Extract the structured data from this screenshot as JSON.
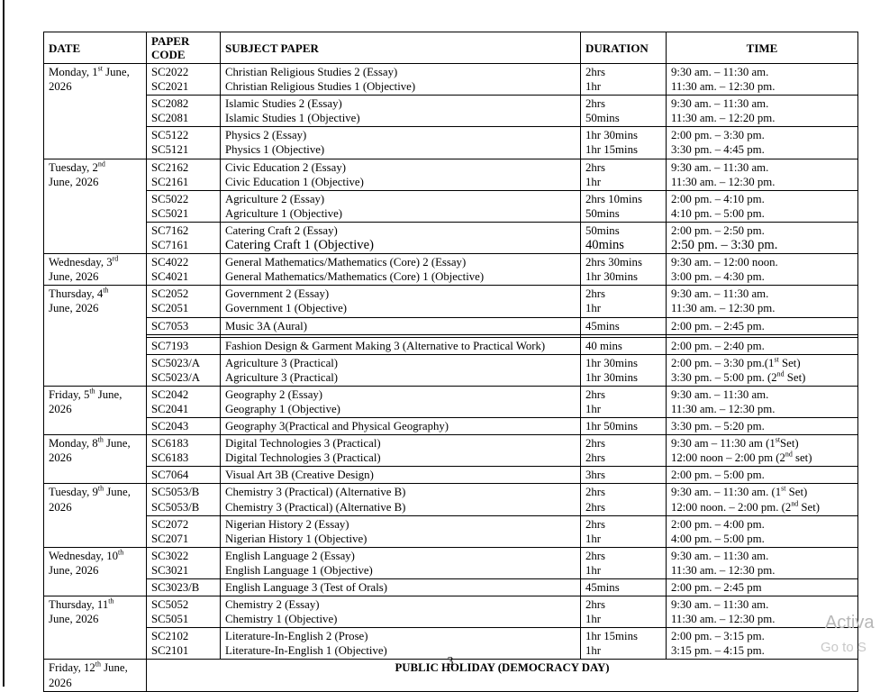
{
  "table": {
    "headers": [
      "DATE",
      "PAPER CODE",
      "SUBJECT PAPER",
      "DURATION",
      "TIME"
    ],
    "groups": [
      {
        "date": "Monday, 1^{st} June,\n2026",
        "rows": [
          {
            "codes": "SC2022\nSC2021",
            "subjects": "Christian Religious Studies 2 (Essay)\nChristian Religious Studies 1 (Objective)",
            "durations": "2hrs\n1hr",
            "times": "9:30 am. – 11:30 am.\n11:30 am. – 12:30 pm."
          },
          {
            "codes": "SC2082\nSC2081",
            "subjects": "Islamic Studies 2 (Essay)\nIslamic Studies 1 (Objective)",
            "durations": "2hrs\n50mins",
            "times": "9:30 am. – 11:30 am.\n11:30 am. – 12:20 pm."
          },
          {
            "codes": "SC5122\nSC5121",
            "subjects": "Physics 2 (Essay)\nPhysics 1 (Objective)",
            "durations": "1hr 30mins\n1hr 15mins",
            "times": "2:00 pm. – 3:30 pm.\n3:30 pm. – 4:45 pm."
          }
        ]
      },
      {
        "date": "Tuesday, 2^{nd}\nJune, 2026",
        "rows": [
          {
            "codes": "SC2162\nSC2161",
            "subjects": "Civic Education 2 (Essay)\nCivic Education 1 (Objective)",
            "durations": "2hrs\n1hr",
            "times": "9:30 am. – 11:30 am.\n11:30 am. – 12:30 pm."
          },
          {
            "codes": "SC5022\nSC5021",
            "subjects": "Agriculture 2 (Essay)\nAgriculture 1 (Objective)",
            "durations": "2hrs 10mins\n50mins",
            "times": "2:00 pm. – 4:10 pm.\n4:10 pm. – 5:00 pm."
          },
          {
            "codes": "SC7162\nSC7161",
            "subjects": "Catering Craft 2 (Essay)\nCatering Craft 1 (Objective)",
            "durations": "50mins\n40mins",
            "times": "2:00 pm. – 2:50 pm.\n2:50 pm. – 3:30 pm.",
            "lg": {
              "subjects": [
                1
              ],
              "durations": [
                1
              ],
              "times": [
                1
              ]
            }
          }
        ]
      },
      {
        "date": "Wednesday, 3^{rd}\nJune, 2026",
        "rows": [
          {
            "codes": "SC4022\nSC4021",
            "subjects": "General Mathematics/Mathematics (Core) 2 (Essay)\nGeneral Mathematics/Mathematics (Core) 1 (Objective)",
            "durations": "2hrs 30mins\n1hr 30mins",
            "times": "9:30 am. – 12:00 noon.\n3:00 pm. – 4:30 pm."
          }
        ]
      },
      {
        "date": "Thursday, 4^{th}\nJune, 2026",
        "rows": [
          {
            "codes": "SC2052\nSC2051",
            "subjects": "Government 2 (Essay)\nGovernment 1 (Objective)",
            "durations": "2hrs\n1hr",
            "times": "9:30 am. – 11:30 am.\n11:30 am. – 12:30 pm."
          },
          {
            "codes": "SC7053",
            "subjects": "Music 3A (Aural)",
            "durations": "45mins",
            "times": "2:00 pm. – 2:45 pm."
          },
          {
            "gap_before": true,
            "codes": "SC7193",
            "subjects": "Fashion Design & Garment Making 3 (Alternative to Practical Work)",
            "durations": "40 mins",
            "times": "2:00 pm. – 2:40 pm."
          },
          {
            "codes": "SC5023/A\nSC5023/A",
            "subjects": "Agriculture 3 (Practical)\nAgriculture 3 (Practical)",
            "durations": "1hr 30mins\n1hr 30mins",
            "times": "2:00 pm. – 3:30 pm.(1^{st} Set)\n3:30 pm. – 5:00 pm. (2^{nd} Set)"
          }
        ]
      },
      {
        "date": "Friday, 5^{th} June,\n2026",
        "rows": [
          {
            "codes": "SC2042\nSC2041",
            "subjects": "Geography 2 (Essay)\nGeography 1 (Objective)",
            "durations": "2hrs\n1hr",
            "times": "9:30 am. – 11:30 am.\n11:30 am. – 12:30 pm."
          },
          {
            "codes": "SC2043",
            "subjects": "Geography 3(Practical and Physical Geography)",
            "durations": "1hr 50mins",
            "times": "3:30 pm. – 5:20 pm."
          }
        ]
      },
      {
        "date": "Monday, 8^{th} June,\n2026",
        "rows": [
          {
            "codes": "SC6183\nSC6183",
            "subjects": "Digital Technologies 3 (Practical)\nDigital Technologies 3 (Practical)",
            "durations": "2hrs\n2hrs",
            "times": "9:30 am – 11:30 am (1^{st}Set)\n12:00 noon – 2:00 pm (2^{nd} set)"
          },
          {
            "codes": "SC7064",
            "subjects": "Visual Art 3B (Creative Design)",
            "durations": "3hrs",
            "times": "2:00 pm. – 5:00 pm."
          }
        ]
      },
      {
        "date": "Tuesday, 9^{th} June,\n2026",
        "rows": [
          {
            "codes": "SC5053/B\nSC5053/B",
            "subjects": "Chemistry 3 (Practical) (Alternative B)\nChemistry 3 (Practical) (Alternative B)",
            "durations": "2hrs\n2hrs",
            "times": "9:30 am. – 11:30 am. (1^{st} Set)\n12:00 noon. – 2:00 pm. (2^{nd} Set)"
          },
          {
            "codes": "SC2072\nSC2071",
            "subjects": "Nigerian History 2 (Essay)\nNigerian History 1 (Objective)",
            "durations": "2hrs\n1hr",
            "times": "2:00 pm. – 4:00 pm.\n4:00 pm. – 5:00 pm."
          }
        ]
      },
      {
        "date": "Wednesday, 10^{th}\nJune, 2026",
        "rows": [
          {
            "codes": "SC3022\nSC3021",
            "subjects": "English Language 2 (Essay)\nEnglish Language 1 (Objective)",
            "durations": "2hrs\n1hr",
            "times": "9:30 am. – 11:30 am.\n11:30 am. – 12:30 pm."
          },
          {
            "codes": "SC3023/B",
            "subjects": "English Language 3 (Test of Orals)",
            "durations": "45mins",
            "times": "2:00 pm. – 2:45 pm"
          }
        ]
      },
      {
        "date": "Thursday, 11^{th}\nJune, 2026",
        "rows": [
          {
            "codes": "SC5052\nSC5051",
            "subjects": "Chemistry 2 (Essay)\nChemistry 1 (Objective)",
            "durations": "2hrs\n1hr",
            "times": "9:30 am. – 11:30 am.\n11:30 am. – 12:30 pm."
          },
          {
            "codes": "SC2102\nSC2101",
            "subjects": "Literature-In-English 2 (Prose)\nLiterature-In-English 1 (Objective)",
            "durations": "1hr 15mins\n1hr",
            "times": "2:00 pm. – 3:15 pm.\n3:15 pm. – 4:15 pm."
          }
        ]
      },
      {
        "date": "Friday, 12^{th} June,\n2026",
        "holiday": "PUBLIC HOLIDAY (DEMOCRACY DAY)"
      }
    ]
  },
  "footer": {
    "page_number": "3"
  },
  "watermark": {
    "line1": "Activa",
    "line2": "Go to S"
  },
  "colors": {
    "text": "#000000",
    "border": "#000000",
    "watermark_1": "#b7b7b7",
    "watermark_2": "#c8c8c8",
    "page_bg": "#ffffff"
  }
}
